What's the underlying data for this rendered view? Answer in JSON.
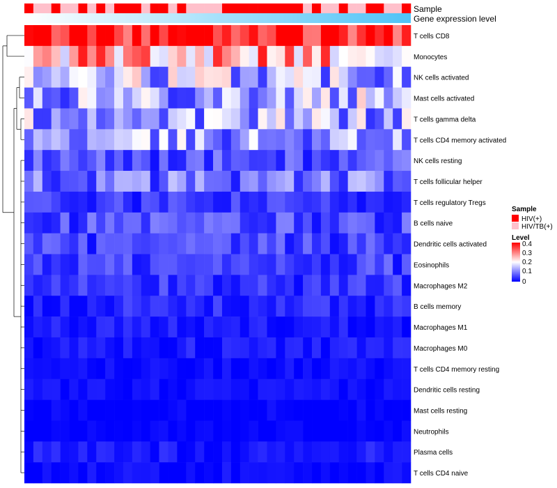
{
  "chart_data": {
    "type": "heatmap",
    "title": "",
    "annotation_labels": {
      "sample": "Sample",
      "gene_level": "Gene expression level"
    },
    "rows": [
      "T cells CD8",
      "Monocytes",
      "NK cells activated",
      "Mast cells activated",
      "T cells gamma delta",
      "T cells CD4 memory activated",
      "NK cells resting",
      "T cells follicular helper",
      "T cells regulatory  Tregs",
      "B cells naive",
      "Dendritic cells activated",
      "Eosinophils",
      "Macrophages M2",
      "B cells memory",
      "Macrophages M1",
      "Macrophages M0",
      "T cells CD4 memory resting",
      "Dendritic cells resting",
      "Mast cells resting",
      "Neutrophils",
      "Plasma cells",
      "T cells CD4 naive"
    ],
    "n_columns": 43,
    "sample_groups": [
      "HIV(+)",
      "HIV/TB(+)"
    ],
    "sample_colors": {
      "HIV(+)": "#ff0000",
      "HIV/TB(+)": "#ffc0cb"
    },
    "sample_annotation": [
      1,
      0,
      0,
      1,
      0,
      0,
      1,
      0,
      1,
      0,
      1,
      1,
      1,
      0,
      1,
      1,
      0,
      1,
      0,
      0,
      0,
      0,
      1,
      1,
      1,
      1,
      1,
      1,
      1,
      1,
      1,
      0,
      1,
      0,
      0,
      1,
      0,
      0,
      1,
      1,
      0,
      0,
      1
    ],
    "row_means": [
      0.36,
      0.27,
      0.15,
      0.14,
      0.13,
      0.12,
      0.06,
      0.09,
      0.04,
      0.06,
      0.05,
      0.05,
      0.04,
      0.03,
      0.02,
      0.02,
      0.01,
      0.01,
      0.005,
      0.003,
      0.02,
      0.01
    ],
    "column_order_note": "columns ordered by gene expression level (low to high)",
    "legend": {
      "sample_title": "Sample",
      "sample_items": [
        "HIV(+)",
        "HIV/TB(+)"
      ],
      "level_title": "Level",
      "level_ticks": [
        "0.4",
        "0.3",
        "0.2",
        "0.1",
        "0"
      ],
      "level_range": [
        0,
        0.4
      ]
    },
    "colors": {
      "low": "#0000ff",
      "mid": "#ffffff",
      "high": "#ff0000",
      "gene_low": "#ffffff",
      "gene_high": "#00bfff"
    }
  }
}
